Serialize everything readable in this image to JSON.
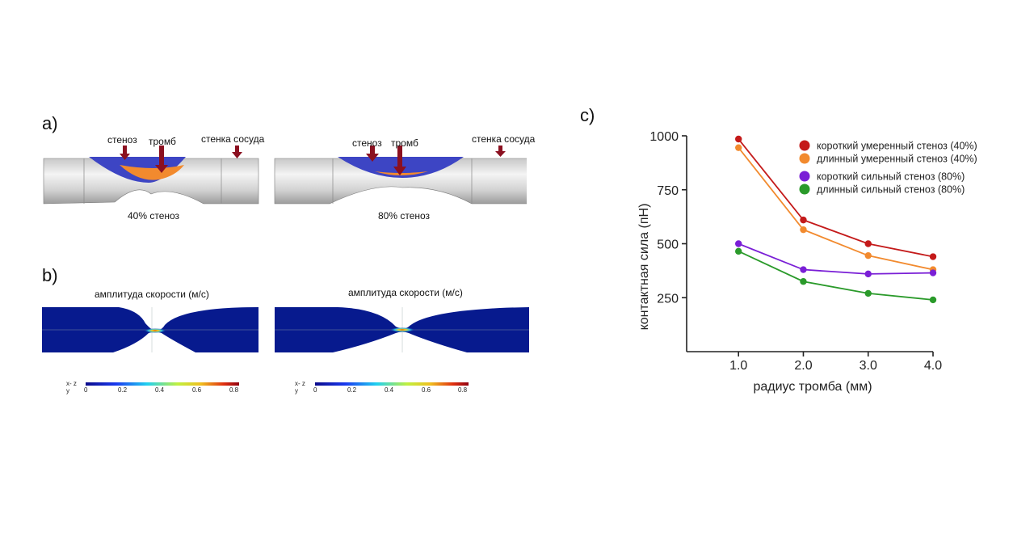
{
  "panel_a": {
    "label": "a)",
    "left": {
      "stenosis": "стеноз",
      "thrombus": "тромб",
      "wall": "стенка сосуда",
      "caption": "40% стеноз"
    },
    "right": {
      "stenosis": "стеноз",
      "thrombus": "тромб",
      "wall": "стенка сосуда",
      "caption": "80% стеноз"
    }
  },
  "panel_b": {
    "label": "b)",
    "left_title": "амплитуда скорости (м/с)",
    "right_title": "амплитуда скорости (м/с)",
    "axes_label_top": "x- z",
    "axes_label_bottom": "y",
    "colorbar_ticks": [
      "0",
      "0.2",
      "0.4",
      "0.6",
      "0.8"
    ]
  },
  "panel_c": {
    "label": "c)",
    "chart_data": {
      "type": "line",
      "xlabel": "радиус тромба (мм)",
      "ylabel": "контактная сила (пН)",
      "x": [
        1.0,
        2.0,
        3.0,
        4.0
      ],
      "x_tick_labels": [
        "1.0",
        "2.0",
        "3.0",
        "4.0"
      ],
      "y_ticks": [
        250,
        500,
        750,
        1000
      ],
      "y_tick_labels": [
        "250",
        "500",
        "750",
        "1000"
      ],
      "xlim": [
        0.2,
        4.0
      ],
      "ylim": [
        0,
        1000
      ],
      "legend_position": "top-right",
      "grid": false,
      "series": [
        {
          "name": "короткий умеренный стеноз (40%)",
          "color": "#c41a1a",
          "values": [
            985,
            610,
            500,
            440
          ]
        },
        {
          "name": "длинный умеренный стеноз (40%)",
          "color": "#f28a2e",
          "values": [
            945,
            565,
            445,
            380
          ]
        },
        {
          "name": "короткий сильный стеноз (80%)",
          "color": "#7a1fd6",
          "values": [
            500,
            380,
            360,
            365
          ]
        },
        {
          "name": "длинный сильный стеноз (80%)",
          "color": "#2a9a2a",
          "values": [
            465,
            325,
            270,
            240
          ]
        }
      ]
    }
  }
}
